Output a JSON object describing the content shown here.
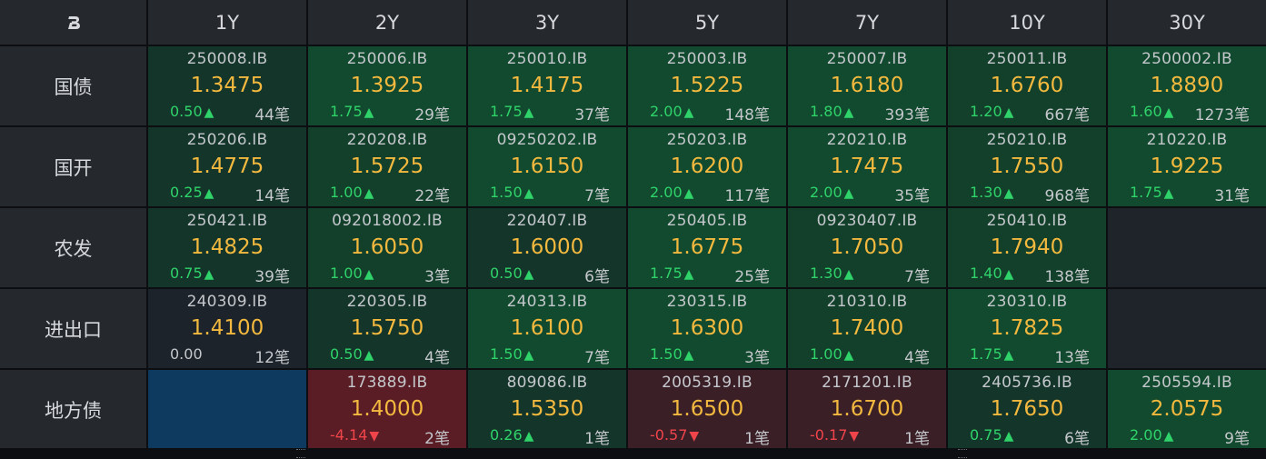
{
  "header": {
    "logo_icon": "b-logo-icon",
    "tenors": [
      "1Y",
      "2Y",
      "3Y",
      "5Y",
      "7Y",
      "10Y",
      "30Y"
    ]
  },
  "rows": [
    {
      "label": "国债",
      "cells": [
        {
          "code": "250008.IB",
          "price": "1.3475",
          "change": "0.50",
          "dir": "up",
          "count": "44笔",
          "shade": "g1"
        },
        {
          "code": "250006.IB",
          "price": "1.3925",
          "change": "1.75",
          "dir": "up",
          "count": "29笔",
          "shade": "g3"
        },
        {
          "code": "250010.IB",
          "price": "1.4175",
          "change": "1.75",
          "dir": "up",
          "count": "37笔",
          "shade": "g3"
        },
        {
          "code": "250003.IB",
          "price": "1.5225",
          "change": "2.00",
          "dir": "up",
          "count": "148笔",
          "shade": "g3"
        },
        {
          "code": "250007.IB",
          "price": "1.6180",
          "change": "1.80",
          "dir": "up",
          "count": "393笔",
          "shade": "g3"
        },
        {
          "code": "250011.IB",
          "price": "1.6760",
          "change": "1.20",
          "dir": "up",
          "count": "667笔",
          "shade": "g2"
        },
        {
          "code": "2500002.IB",
          "price": "1.8890",
          "change": "1.60",
          "dir": "up",
          "count": "1273笔",
          "shade": "g3"
        }
      ]
    },
    {
      "label": "国开",
      "cells": [
        {
          "code": "250206.IB",
          "price": "1.4775",
          "change": "0.25",
          "dir": "up",
          "count": "14笔",
          "shade": "g1"
        },
        {
          "code": "220208.IB",
          "price": "1.5725",
          "change": "1.00",
          "dir": "up",
          "count": "22笔",
          "shade": "g2"
        },
        {
          "code": "09250202.IB",
          "price": "1.6150",
          "change": "1.50",
          "dir": "up",
          "count": "7笔",
          "shade": "g3"
        },
        {
          "code": "250203.IB",
          "price": "1.6200",
          "change": "2.00",
          "dir": "up",
          "count": "117笔",
          "shade": "g3"
        },
        {
          "code": "220210.IB",
          "price": "1.7475",
          "change": "2.00",
          "dir": "up",
          "count": "35笔",
          "shade": "g3"
        },
        {
          "code": "250210.IB",
          "price": "1.7550",
          "change": "1.30",
          "dir": "up",
          "count": "968笔",
          "shade": "g2"
        },
        {
          "code": "210220.IB",
          "price": "1.9225",
          "change": "1.75",
          "dir": "up",
          "count": "31笔",
          "shade": "g3"
        }
      ]
    },
    {
      "label": "农发",
      "cells": [
        {
          "code": "250421.IB",
          "price": "1.4825",
          "change": "0.75",
          "dir": "up",
          "count": "39笔",
          "shade": "g1"
        },
        {
          "code": "092018002.IB",
          "price": "1.6050",
          "change": "1.00",
          "dir": "up",
          "count": "3笔",
          "shade": "g2"
        },
        {
          "code": "220407.IB",
          "price": "1.6000",
          "change": "0.50",
          "dir": "up",
          "count": "6笔",
          "shade": "g1"
        },
        {
          "code": "250405.IB",
          "price": "1.6775",
          "change": "1.75",
          "dir": "up",
          "count": "25笔",
          "shade": "g3"
        },
        {
          "code": "09230407.IB",
          "price": "1.7050",
          "change": "1.30",
          "dir": "up",
          "count": "7笔",
          "shade": "g2"
        },
        {
          "code": "250410.IB",
          "price": "1.7940",
          "change": "1.40",
          "dir": "up",
          "count": "138笔",
          "shade": "g2"
        },
        null
      ]
    },
    {
      "label": "进出口",
      "cells": [
        {
          "code": "240309.IB",
          "price": "1.4100",
          "change": "0.00",
          "dir": "zero",
          "count": "12笔",
          "shade": "flat"
        },
        {
          "code": "220305.IB",
          "price": "1.5750",
          "change": "0.50",
          "dir": "up",
          "count": "4笔",
          "shade": "g1"
        },
        {
          "code": "240313.IB",
          "price": "1.6100",
          "change": "1.50",
          "dir": "up",
          "count": "7笔",
          "shade": "g3"
        },
        {
          "code": "230315.IB",
          "price": "1.6300",
          "change": "1.50",
          "dir": "up",
          "count": "3笔",
          "shade": "g3"
        },
        {
          "code": "210310.IB",
          "price": "1.7400",
          "change": "1.00",
          "dir": "up",
          "count": "4笔",
          "shade": "g2"
        },
        {
          "code": "230310.IB",
          "price": "1.7825",
          "change": "1.75",
          "dir": "up",
          "count": "13笔",
          "shade": "g3"
        },
        null
      ]
    },
    {
      "label": "地方债",
      "cells": [
        {
          "empty": true,
          "shade": "blue"
        },
        {
          "code": "173889.IB",
          "price": "1.4000",
          "change": "-4.14",
          "dir": "down",
          "count": "2笔",
          "shade": "r2"
        },
        {
          "code": "809086.IB",
          "price": "1.5350",
          "change": "0.26",
          "dir": "up",
          "count": "1笔",
          "shade": "g1"
        },
        {
          "code": "2005319.IB",
          "price": "1.6500",
          "change": "-0.57",
          "dir": "down",
          "count": "1笔",
          "shade": "r1"
        },
        {
          "code": "2171201.IB",
          "price": "1.6700",
          "change": "-0.17",
          "dir": "down",
          "count": "1笔",
          "shade": "r1"
        },
        {
          "code": "2405736.IB",
          "price": "1.7650",
          "change": "0.75",
          "dir": "up",
          "count": "6笔",
          "shade": "g1"
        },
        {
          "code": "2505594.IB",
          "price": "2.0575",
          "change": "2.00",
          "dir": "up",
          "count": "9笔",
          "shade": "g3"
        }
      ]
    }
  ],
  "colors": {
    "price": "#f3b93f",
    "up": "#2fd36a",
    "down": "#f0444b",
    "header_bg": "#25292e"
  }
}
